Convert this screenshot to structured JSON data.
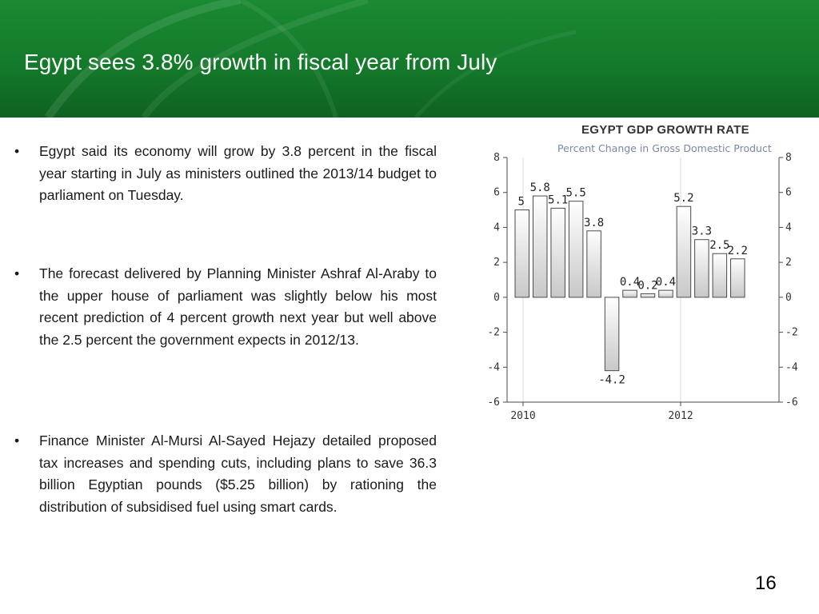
{
  "slide": {
    "title": "Egypt sees 3.8% growth in fiscal year from July",
    "page_number": "16"
  },
  "bullets": [
    "Egypt said its economy will grow by 3.8 percent in the fiscal year starting in July as ministers outlined the 2013/14 budget to parliament on Tuesday.",
    "The forecast delivered by Planning Minister Ashraf Al-Araby to the upper house of parliament was slightly below his most recent prediction of 4 percent growth next year but well above the 2.5 percent the government expects in 2012/13.",
    "Finance Minister Al-Mursi Al-Sayed Hejazy detailed proposed tax increases and spending cuts, including plans to save 36.3 billion Egyptian pounds ($5.25 billion) by rationing the distribution of subsidised fuel using smart cards."
  ],
  "chart_data": {
    "type": "bar",
    "title": "EGYPT GDP GROWTH RATE",
    "subtitle": "Percent Change in Gross Domestic Product",
    "values": [
      5,
      5.8,
      5.1,
      5.5,
      3.8,
      -4.2,
      0.4,
      0.2,
      0.4,
      5.2,
      3.3,
      2.5,
      2.2
    ],
    "value_labels": [
      "5",
      "5.8",
      "5.1",
      "5.5",
      "3.8",
      "-4.2",
      "0.4",
      "0.2",
      "0.4",
      "5.2",
      "3.3",
      "2.5",
      "2.2"
    ],
    "ylim": [
      -6,
      8
    ],
    "yticks": [
      8,
      6,
      4,
      2,
      0,
      -2,
      -4,
      -6
    ],
    "x_tick_labels": [
      "2010",
      "2012"
    ],
    "grid": true,
    "colors": {
      "bar_top": "#ffffff",
      "bar_bottom": "#c8c8c8",
      "bar_stroke": "#4a4a4a",
      "axis": "#4a4a4a",
      "grid": "#d9d9d9"
    }
  }
}
